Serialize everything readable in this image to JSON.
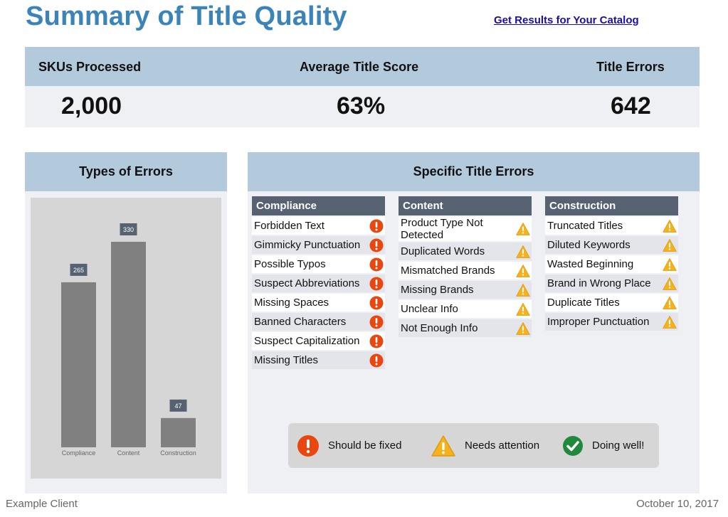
{
  "header": {
    "title": "Summary of Title Quality",
    "link": "Get Results for Your Catalog"
  },
  "kpis": [
    {
      "label": "SKUs Processed",
      "value": "2,000"
    },
    {
      "label": "Average Title Score",
      "value": "63%"
    },
    {
      "label": "Title Errors",
      "value": "642"
    }
  ],
  "types_panel": {
    "title": "Types of Errors"
  },
  "chart_data": {
    "type": "bar",
    "title": "Types of Errors",
    "categories": [
      "Compliance",
      "Content",
      "Construction"
    ],
    "values": [
      265,
      330,
      47
    ],
    "ylim": [
      0,
      330
    ],
    "grid": false,
    "legend": "none",
    "bar_color": "#808080"
  },
  "specific_panel": {
    "title": "Specific Title Errors"
  },
  "columns": [
    {
      "title": "Compliance",
      "items": [
        {
          "label": "Forbidden Text",
          "status": "error"
        },
        {
          "label": "Gimmicky Punctuation",
          "status": "error"
        },
        {
          "label": "Possible Typos",
          "status": "error"
        },
        {
          "label": "Suspect Abbreviations",
          "status": "error"
        },
        {
          "label": "Missing Spaces",
          "status": "error"
        },
        {
          "label": "Banned Characters",
          "status": "error"
        },
        {
          "label": "Suspect Capitalization",
          "status": "error"
        },
        {
          "label": "Missing Titles",
          "status": "error"
        }
      ]
    },
    {
      "title": "Content",
      "items": [
        {
          "label": "Product Type Not Detected",
          "status": "warning"
        },
        {
          "label": "Duplicated Words",
          "status": "warning"
        },
        {
          "label": "Mismatched Brands",
          "status": "warning"
        },
        {
          "label": "Missing Brands",
          "status": "warning"
        },
        {
          "label": "Unclear Info",
          "status": "warning"
        },
        {
          "label": "Not Enough Info",
          "status": "warning"
        }
      ]
    },
    {
      "title": "Construction",
      "items": [
        {
          "label": "Truncated Titles",
          "status": "warning"
        },
        {
          "label": "Diluted Keywords",
          "status": "warning"
        },
        {
          "label": "Wasted Beginning",
          "status": "warning"
        },
        {
          "label": "Brand in Wrong Place",
          "status": "warning"
        },
        {
          "label": "Duplicate Titles",
          "status": "warning"
        },
        {
          "label": "Improper Punctuation",
          "status": "warning"
        }
      ]
    }
  ],
  "legend": {
    "error": "Should be fixed",
    "warning": "Needs attention",
    "ok": "Doing well!"
  },
  "colors": {
    "error": "#e8470f",
    "warning": "#f6b21b",
    "ok": "#1f8a3c"
  },
  "footer": {
    "client": "Example Client",
    "date": "October 10, 2017"
  }
}
